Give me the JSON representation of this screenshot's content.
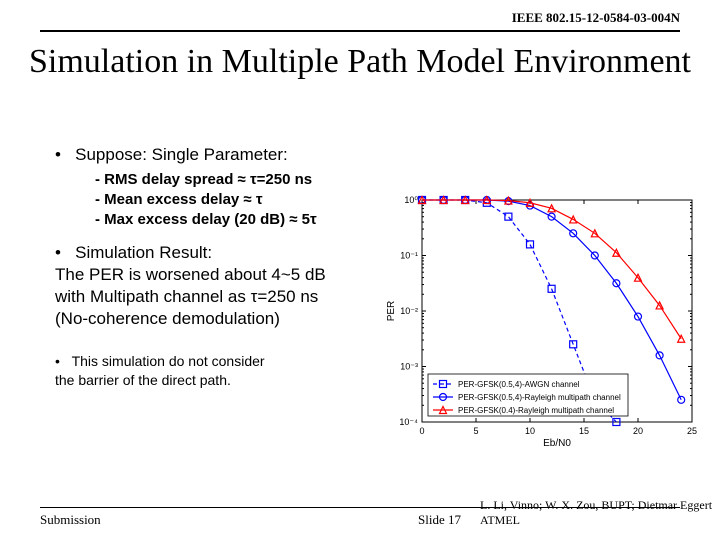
{
  "header": {
    "doc_id": "IEEE 802.15-12-0584-03-004N"
  },
  "title": "Simulation in Multiple Path Model Environment",
  "suppose": {
    "label": "Suppose: Single Parameter:",
    "items": [
      "- RMS delay spread ≈ τ=250 ns",
      "- Mean excess delay ≈ τ",
      "- Max excess delay (20 dB) ≈ 5τ"
    ]
  },
  "result": {
    "heading": "Simulation Result:",
    "line1": "The PER is worsened about 4~5 dB",
    "line2": "with Multipath channel as τ=250 ns",
    "line3": "(No-coherence demodulation)"
  },
  "note": {
    "line1": "This simulation do not  consider",
    "line2": "the barrier of the direct path."
  },
  "footer": {
    "left": "Submission",
    "center": "Slide 17",
    "right": "L. Li, Vinno; W. X. Zou, BUPT; Dietmar Eggert ATMEL"
  },
  "chart": {
    "type": "line",
    "background_color": "#ffffff",
    "xlim": [
      0,
      25
    ],
    "ylim_exp": [
      -4,
      0
    ],
    "xtick_step": 5,
    "xlabel": "Eb/N0",
    "ylabel": "PER",
    "series": [
      {
        "name": "PER-GFSK(0.5,4)-AWGN channel",
        "color": "#0000ff",
        "marker": "square",
        "dash": "4,3",
        "x": [
          0,
          2,
          4,
          6,
          8,
          10,
          12,
          14,
          16,
          18
        ],
        "logy": [
          0,
          0,
          0,
          -0.05,
          -0.3,
          -0.8,
          -1.6,
          -2.6,
          -3.6,
          -4
        ]
      },
      {
        "name": "PER-GFSK(0.5,4)-Rayleigh multipath channel",
        "color": "#0000ff",
        "marker": "circle",
        "dash": "none",
        "x": [
          0,
          2,
          4,
          6,
          8,
          10,
          12,
          14,
          16,
          18,
          20,
          22,
          24
        ],
        "logy": [
          0,
          0,
          0,
          0,
          -0.02,
          -0.1,
          -0.3,
          -0.6,
          -1.0,
          -1.5,
          -2.1,
          -2.8,
          -3.6
        ]
      },
      {
        "name": "PER-GFSK(0.4)-Rayleigh multipath channel",
        "color": "#ff0000",
        "marker": "triangle",
        "dash": "none",
        "x": [
          0,
          2,
          4,
          6,
          8,
          10,
          12,
          14,
          16,
          18,
          20,
          22,
          24
        ],
        "logy": [
          0,
          0,
          0,
          0,
          -0.01,
          -0.05,
          -0.15,
          -0.35,
          -0.6,
          -0.95,
          -1.4,
          -1.9,
          -2.5
        ]
      }
    ],
    "legend_pos": "bottom-left"
  }
}
